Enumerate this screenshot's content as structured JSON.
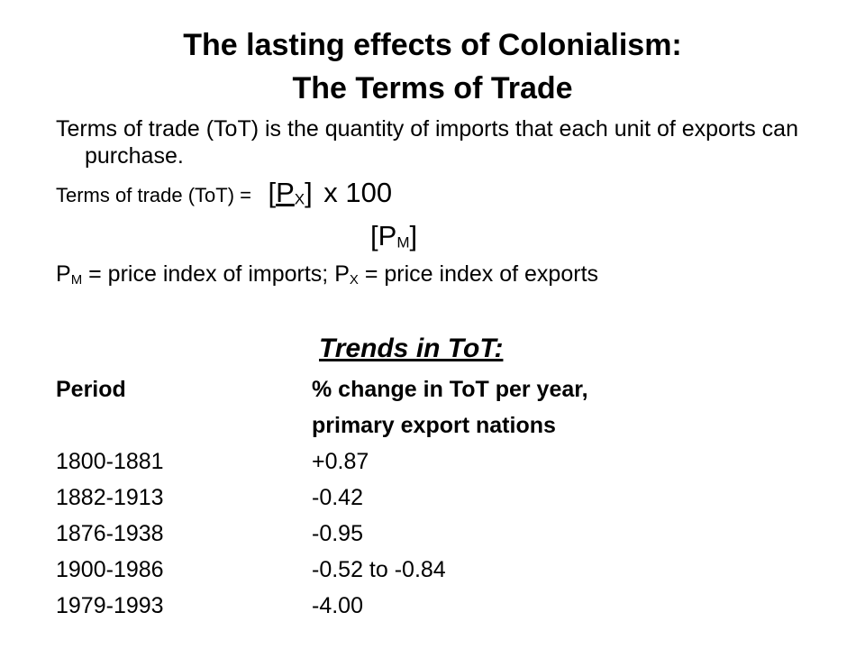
{
  "title": {
    "line1": "The lasting effects of Colonialism:",
    "line2": "The Terms of Trade"
  },
  "definition": "Terms of trade (ToT) is the quantity of imports that each unit of exports can purchase.",
  "formula": {
    "label": "Terms of trade (ToT) =",
    "numerator_base": "P",
    "numerator_sub": "X",
    "multiplier": "x 100",
    "denominator_base": "P",
    "denominator_sub": "M"
  },
  "legend": {
    "pm_base": "P",
    "pm_sub": "M",
    "pm_text": "= price index of imports;",
    "px_base": "P",
    "px_sub": "X",
    "px_text": "= price index of exports"
  },
  "trends_heading": "Trends in ToT:",
  "table": {
    "col1_header": "Period",
    "col2_header_line1": "% change in ToT per year,",
    "col2_header_line2": "primary export nations",
    "rows": [
      {
        "period": "1800-1881",
        "change": "+0.87"
      },
      {
        "period": "1882-1913",
        "change": "-0.42"
      },
      {
        "period": "1876-1938",
        "change": "-0.95"
      },
      {
        "period": "1900-1986",
        "change": "-0.52 to -0.84"
      },
      {
        "period": "1979-1993",
        "change": "-4.00"
      }
    ]
  }
}
